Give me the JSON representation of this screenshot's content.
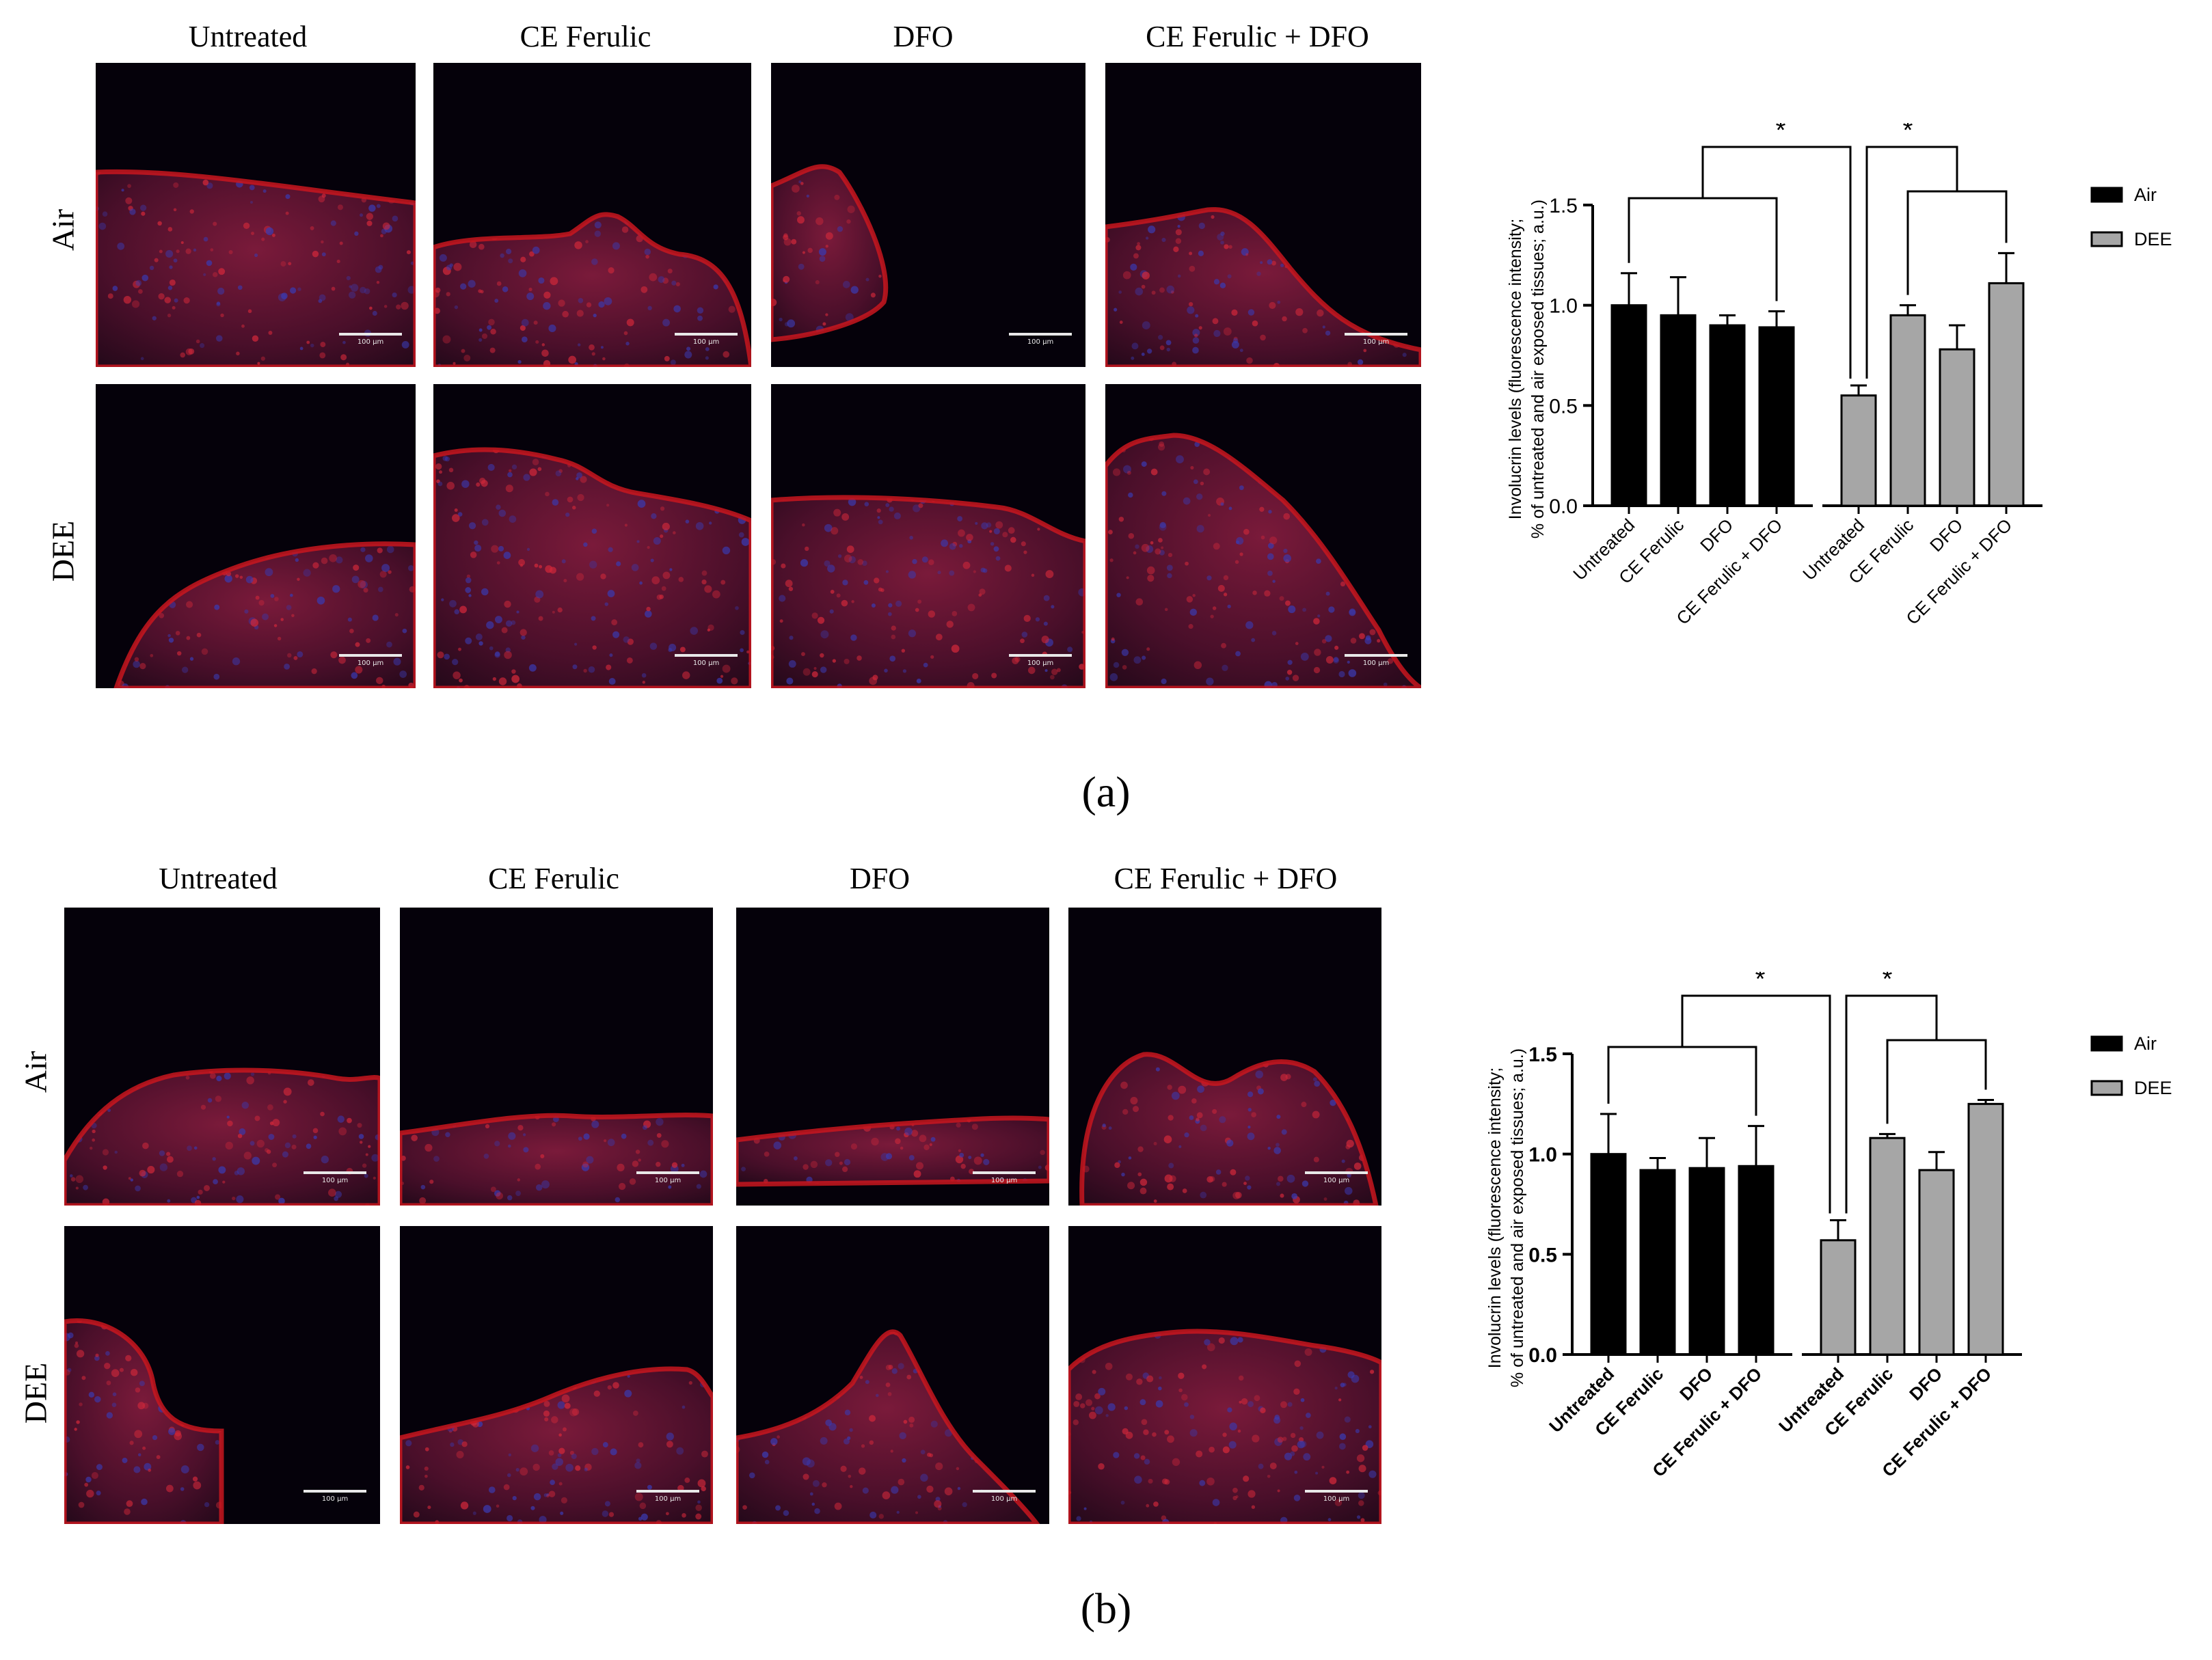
{
  "figure": {
    "columns": [
      "Untreated",
      "CE Ferulic",
      "DFO",
      "CE Ferulic + DFO"
    ],
    "rows": [
      "Air",
      "DEE"
    ],
    "scale_bar_label": "100 µm",
    "captions": [
      "(a)",
      "(b)"
    ]
  },
  "colors": {
    "air_bar": "#000000",
    "dee_bar": "#a6a6a6",
    "tissue_red": "#c8161e",
    "nuclei_blue": "#2a2a8c",
    "background": "#05010a"
  },
  "chart_data": [
    {
      "type": "bar",
      "panel": "a",
      "categories": [
        "Untreated",
        "CE Ferulic",
        "DFO",
        "CE Ferulic + DFO"
      ],
      "series": [
        {
          "name": "Air",
          "values": [
            1.0,
            0.95,
            0.9,
            0.89
          ],
          "errors": [
            0.16,
            0.19,
            0.05,
            0.08
          ]
        },
        {
          "name": "DEE",
          "values": [
            0.55,
            0.95,
            0.78,
            1.11
          ],
          "errors": [
            0.05,
            0.05,
            0.12,
            0.15
          ]
        }
      ],
      "ylabel_line1": "Involucrin levels (fluorescence intensity;",
      "ylabel_line2": "% of untreated and air exposed tissues; a.u.)",
      "yticks": [
        "0.0",
        "0.5",
        "1.0",
        "1.5"
      ],
      "ylim": [
        0,
        1.5
      ],
      "significance": [
        "*",
        "*"
      ],
      "legend": "right",
      "bold_tick_labels": false
    },
    {
      "type": "bar",
      "panel": "b",
      "categories": [
        "Untreated",
        "CE Ferulic",
        "DFO",
        "CE Ferulic + DFO"
      ],
      "series": [
        {
          "name": "Air",
          "values": [
            1.0,
            0.92,
            0.93,
            0.94
          ],
          "errors": [
            0.2,
            0.06,
            0.15,
            0.2
          ]
        },
        {
          "name": "DEE",
          "values": [
            0.57,
            1.08,
            0.92,
            1.25
          ],
          "errors": [
            0.1,
            0.02,
            0.09,
            0.02
          ]
        }
      ],
      "ylabel_line1": "Involucrin levels (fluorescence intensity;",
      "ylabel_line2": "% of untreated and air exposed tissues; a.u.)",
      "yticks": [
        "0.0",
        "0.5",
        "1.0",
        "1.5"
      ],
      "ylim": [
        0,
        1.5
      ],
      "significance": [
        "*",
        "*"
      ],
      "legend": "right",
      "bold_tick_labels": true
    }
  ]
}
